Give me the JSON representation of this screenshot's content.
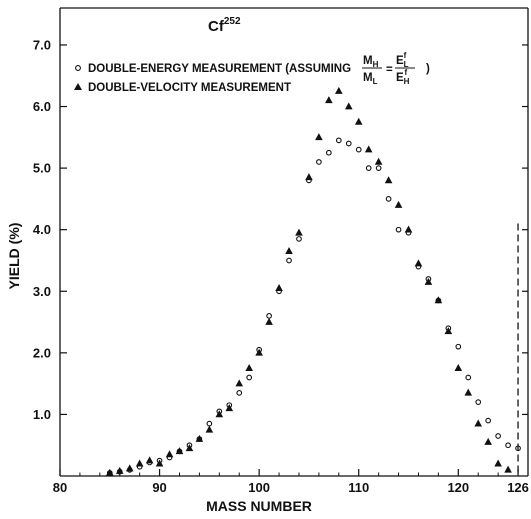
{
  "chart_data": {
    "type": "scatter",
    "title": "Cf",
    "title_superscript": "252",
    "xlabel": "MASS NUMBER",
    "ylabel": "YIELD (%)",
    "xlim": [
      80,
      127
    ],
    "ylim": [
      0,
      7.6
    ],
    "x_ticks": [
      {
        "value": 80,
        "label": "80"
      },
      {
        "value": 90,
        "label": "90"
      },
      {
        "value": 100,
        "label": "100"
      },
      {
        "value": 110,
        "label": "110"
      },
      {
        "value": 120,
        "label": "120"
      },
      {
        "value": 126,
        "label": "126"
      }
    ],
    "y_ticks": [
      {
        "value": 1.0,
        "label": "1.0"
      },
      {
        "value": 2.0,
        "label": "2.0"
      },
      {
        "value": 3.0,
        "label": "3.0"
      },
      {
        "value": 4.0,
        "label": "4.0"
      },
      {
        "value": 5.0,
        "label": "5.0"
      },
      {
        "value": 6.0,
        "label": "6.0"
      },
      {
        "value": 7.0,
        "label": "7.0"
      }
    ],
    "legend_location": "top-left",
    "legend": {
      "energy_text_before": "DOUBLE-ENERGY MEASUREMENT (ASSUMING",
      "energy_text_after": ")",
      "velocity_text": "DOUBLE-VELOCITY MEASUREMENT",
      "formula": {
        "lhs_num": "M",
        "lhs_num_sub": "H",
        "lhs_den": "M",
        "lhs_den_sub": "L",
        "eq": "=",
        "rhs_num": "E",
        "rhs_num_sub": "L",
        "rhs_num_sup": "f",
        "rhs_den": "E",
        "rhs_den_sub": "H",
        "rhs_den_sup": "f"
      }
    },
    "reference_line": {
      "x": 126,
      "y_top": 4.1,
      "style": "dashed"
    },
    "series": [
      {
        "name": "DOUBLE-ENERGY MEASUREMENT",
        "marker": "circle-open",
        "x": [
          85,
          86,
          87,
          88,
          89,
          90,
          91,
          92,
          93,
          94,
          95,
          96,
          97,
          98,
          99,
          100,
          101,
          102,
          103,
          104,
          105,
          106,
          107,
          108,
          109,
          110,
          111,
          112,
          113,
          114,
          115,
          116,
          117,
          118,
          119,
          120,
          121,
          122,
          123,
          124,
          125,
          126
        ],
        "y": [
          0.05,
          0.07,
          0.1,
          0.15,
          0.22,
          0.25,
          0.3,
          0.4,
          0.5,
          0.6,
          0.85,
          1.05,
          1.15,
          1.35,
          1.6,
          2.05,
          2.6,
          3.0,
          3.5,
          3.85,
          4.8,
          5.1,
          5.25,
          5.45,
          5.4,
          5.3,
          5.0,
          5.0,
          4.5,
          4.0,
          3.95,
          3.4,
          3.2,
          2.85,
          2.4,
          2.1,
          1.6,
          1.2,
          0.9,
          0.65,
          0.5,
          0.45
        ]
      },
      {
        "name": "DOUBLE-VELOCITY MEASUREMENT",
        "marker": "triangle-filled",
        "x": [
          85,
          86,
          87,
          88,
          89,
          90,
          91,
          92,
          93,
          94,
          95,
          96,
          97,
          98,
          99,
          100,
          101,
          102,
          103,
          104,
          105,
          106,
          107,
          108,
          109,
          110,
          111,
          112,
          113,
          114,
          115,
          116,
          117,
          118,
          119,
          120,
          121,
          122,
          123,
          124,
          125
        ],
        "y": [
          0.05,
          0.08,
          0.12,
          0.2,
          0.25,
          0.2,
          0.35,
          0.4,
          0.45,
          0.6,
          0.75,
          1.0,
          1.1,
          1.5,
          1.75,
          2.0,
          2.5,
          3.05,
          3.65,
          3.95,
          4.85,
          5.5,
          6.1,
          6.25,
          6.0,
          5.75,
          5.3,
          5.1,
          4.8,
          4.4,
          4.0,
          3.45,
          3.15,
          2.85,
          2.35,
          1.75,
          1.35,
          0.85,
          0.55,
          0.2,
          0.1
        ]
      }
    ]
  }
}
